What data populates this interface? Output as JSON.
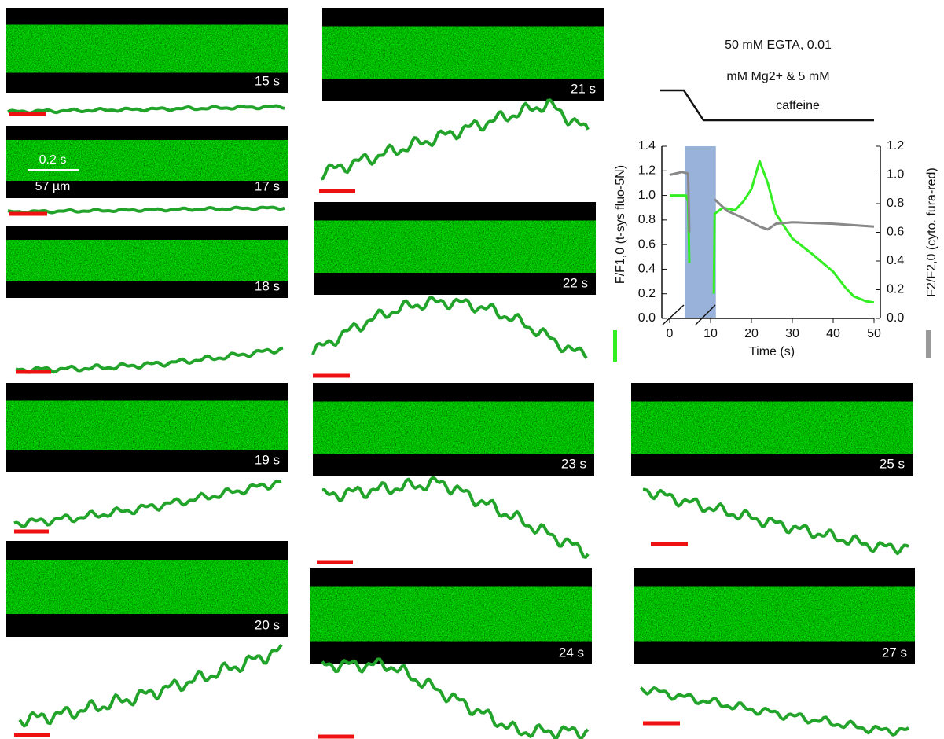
{
  "panels": [
    {
      "time_label": "15 s"
    },
    {
      "time_label": "17 s"
    },
    {
      "time_label": "18 s"
    },
    {
      "time_label": "19 s"
    },
    {
      "time_label": "20 s"
    },
    {
      "time_label": "21 s"
    },
    {
      "time_label": "22 s"
    },
    {
      "time_label": "23 s"
    },
    {
      "time_label": "24 s"
    },
    {
      "time_label": "25 s"
    },
    {
      "time_label": "27 s"
    }
  ],
  "scale_bar": {
    "time": "0.2 s",
    "length": "57 µm"
  },
  "solution_annotation": [
    "50 mM EGTA, 0.01",
    "mM Mg2+ & 5 mM",
    "caffeine"
  ],
  "chart_data": {
    "type": "line",
    "x_label": "Time (s)",
    "y_label": "F/F1,0 (t-sys fluo-5N)",
    "y2_label": "F2/F2,0 (cyto. fura-red)",
    "xlim": [
      0,
      50
    ],
    "xticks": [
      0,
      10,
      20,
      30,
      40,
      50
    ],
    "ylim": [
      0,
      1.4
    ],
    "yticks": [
      {
        "value": 0,
        "label": "0.0"
      },
      0.2,
      0.4,
      0.6,
      0.8,
      {
        "value": 1,
        "label": "1.0"
      },
      1.2,
      1.4
    ],
    "y2lim": [
      0,
      1.2
    ],
    "y2ticks": [
      {
        "value": 0,
        "label": "0.0"
      },
      0.2,
      0.4,
      0.6,
      0.8,
      {
        "value": 1,
        "label": "1.0"
      },
      1.2
    ],
    "shaded_region": [
      3.8,
      11.3
    ],
    "series": [
      {
        "color": "#33ee22",
        "x": [
          0,
          2,
          4,
          4.5,
          4.8,
          7,
          10.8,
          11,
          13,
          16,
          18,
          20,
          22,
          24,
          26,
          28,
          30,
          35,
          40,
          43,
          45,
          48,
          50
        ],
        "values": [
          1,
          1,
          1,
          0.95,
          0.45,
          null,
          0.2,
          0.85,
          0.9,
          0.88,
          0.95,
          1.05,
          1.28,
          1.1,
          0.85,
          0.75,
          0.65,
          0.52,
          0.38,
          0.25,
          0.18,
          0.14,
          0.13
        ]
      },
      {
        "color": "#888888",
        "axis": "y2",
        "x": [
          0,
          3,
          4.5,
          4.8,
          7,
          11,
          14,
          18,
          22,
          24,
          26,
          30,
          40,
          50
        ],
        "values": [
          1,
          1.02,
          1.01,
          0.6,
          null,
          0.83,
          0.75,
          0.7,
          0.64,
          0.62,
          0.66,
          0.67,
          0.66,
          0.64
        ]
      }
    ]
  }
}
